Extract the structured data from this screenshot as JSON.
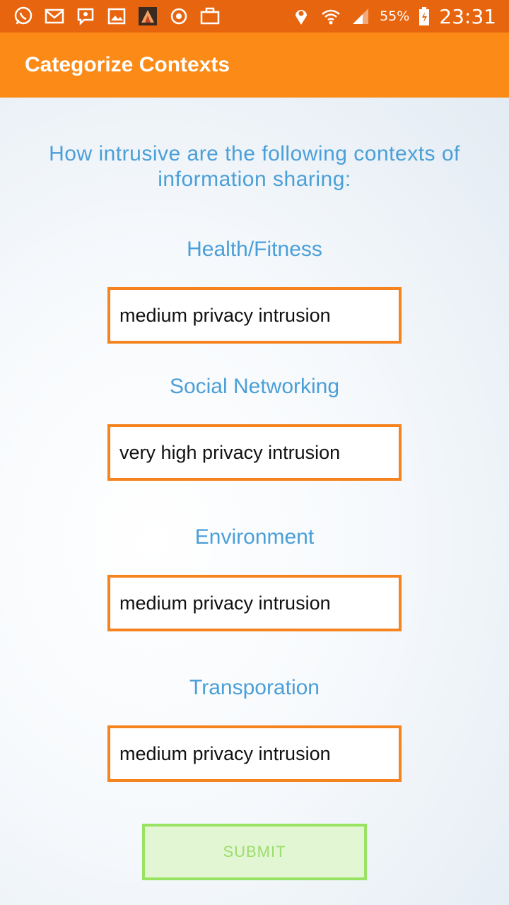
{
  "status_bar": {
    "icons_left": [
      "whatsapp-icon",
      "gmail-icon",
      "viber-icon",
      "gallery-icon",
      "app-icon",
      "sync-icon",
      "briefcase-icon"
    ],
    "icons_right": [
      "location-icon",
      "wifi-icon",
      "signal-icon",
      "battery-icon"
    ],
    "battery_percent": "55%",
    "time": "23:31",
    "color": "#e8650f"
  },
  "app_bar": {
    "title": "Categorize Contexts",
    "color": "#fb8a16"
  },
  "main": {
    "question": "How intrusive are the following contexts of information sharing:",
    "contexts": [
      {
        "label": "Health/Fitness",
        "value": "medium privacy intrusion"
      },
      {
        "label": "Social Networking",
        "value": "very high privacy intrusion"
      },
      {
        "label": "Environment",
        "value": "medium privacy intrusion"
      },
      {
        "label": "Transporation",
        "value": "medium privacy intrusion"
      }
    ],
    "submit_label": "SUBMIT"
  },
  "colors": {
    "accent_text": "#4a9fd8",
    "field_border": "#f5841f",
    "submit_border": "#99e362"
  }
}
